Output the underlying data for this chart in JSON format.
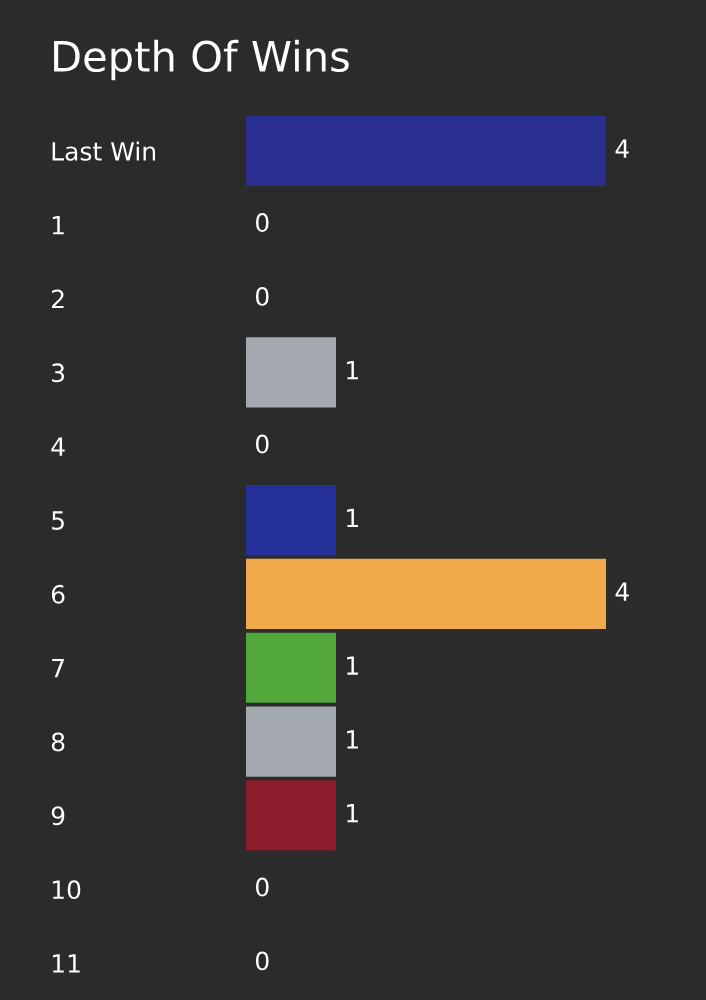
{
  "chart_data": {
    "type": "bar",
    "orientation": "horizontal",
    "title": "Depth Of Wins",
    "categories": [
      "Last Win",
      "1",
      "2",
      "3",
      "4",
      "5",
      "6",
      "7",
      "8",
      "9",
      "10",
      "11"
    ],
    "values": [
      4,
      0,
      0,
      1,
      0,
      1,
      4,
      1,
      1,
      1,
      0,
      0
    ],
    "colors": [
      "#2a2f8f",
      "#2a2f8f",
      "#2a2f8f",
      "#a4a9b0",
      "#2a2f8f",
      "#25309a",
      "#f0aa4c",
      "#52a83a",
      "#a4a9b0",
      "#8c1c2c",
      "#2a2f8f",
      "#2a2f8f"
    ],
    "data_labels": true,
    "grid": false,
    "legend": false,
    "tick_labels": "y"
  }
}
